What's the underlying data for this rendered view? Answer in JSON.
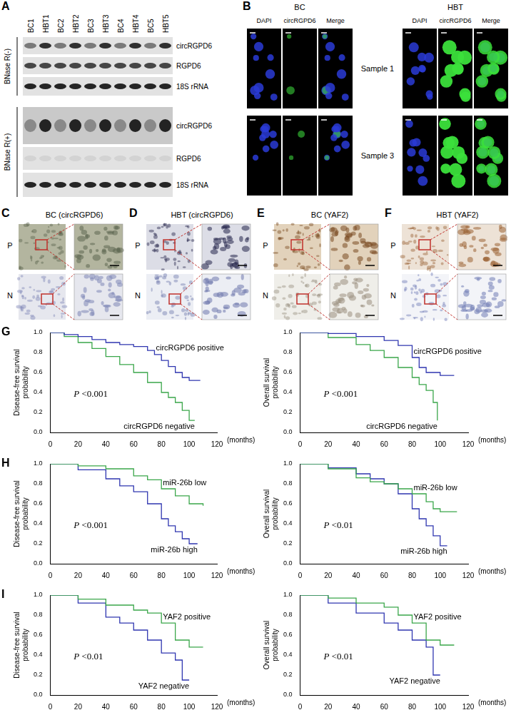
{
  "panels": [
    {
      "label": "A",
      "columns": [
        "BC1",
        "HBT1",
        "BC2",
        "HBT2",
        "BC3",
        "HBT3",
        "BC4",
        "HBT4",
        "BC5",
        "HBT5"
      ],
      "sections": [
        {
          "label": "BNase R(-)",
          "rows": [
            "circRGPD6",
            "RGPD6",
            "18S rRNA"
          ]
        },
        {
          "label": "BNase R(+)",
          "rows": [
            "circRGPD6",
            "RGPD6",
            "18S rRNA"
          ]
        }
      ]
    },
    {
      "label": "B",
      "groups": [
        "BC",
        "HBT"
      ],
      "channels": [
        "DAPI",
        "circRGPD6",
        "Merge"
      ],
      "samples": [
        "Sample 1",
        "Sample 3"
      ]
    },
    {
      "label": "C",
      "title": "BC (circRGPD6)",
      "rows": [
        "P",
        "N"
      ]
    },
    {
      "label": "D",
      "title": "HBT (circRGPD6)",
      "rows": [
        "P",
        "N"
      ]
    },
    {
      "label": "E",
      "title": "BC (YAF2)",
      "rows": [
        "P",
        "N"
      ]
    },
    {
      "label": "F",
      "title": "HBT (YAF2)",
      "rows": [
        "P",
        "N"
      ]
    },
    {
      "label": "G"
    },
    {
      "label": "H"
    },
    {
      "label": "I"
    }
  ],
  "chart_data": [
    {
      "type": "line",
      "y_label": "Disease-free survival probability",
      "x_label": "(months)",
      "annotation": "P <0.001",
      "xlim": [
        0,
        120
      ],
      "xticks": [
        0,
        20,
        40,
        60,
        80,
        100,
        120
      ],
      "ylim": [
        0,
        1
      ],
      "yticks": [
        {
          "value": 0,
          "label": "0.0"
        },
        0.2,
        0.4,
        0.6,
        0.8,
        {
          "value": 1,
          "label": "1.0"
        }
      ],
      "grid": false,
      "line_style": "steps",
      "series": [
        {
          "name": "circRGPD6 positive",
          "color": "#2f36b0",
          "x": [
            0,
            10,
            20,
            30,
            40,
            50,
            60,
            70,
            75,
            80,
            85,
            90,
            95,
            100,
            108
          ],
          "values": [
            1,
            0.98,
            0.96,
            0.93,
            0.9,
            0.88,
            0.86,
            0.82,
            0.78,
            0.72,
            0.66,
            0.6,
            0.55,
            0.52,
            0.52
          ]
        },
        {
          "name": "circRGPD6 negative",
          "color": "#3aa64a",
          "x": [
            0,
            10,
            20,
            30,
            40,
            50,
            60,
            70,
            80,
            85,
            90,
            95,
            100,
            104
          ],
          "values": [
            1,
            0.96,
            0.9,
            0.84,
            0.76,
            0.68,
            0.6,
            0.5,
            0.4,
            0.35,
            0.3,
            0.22,
            0.12,
            0.12
          ]
        }
      ]
    },
    {
      "type": "line",
      "y_label": "Overall survival probability",
      "x_label": "(months)",
      "annotation": "P <0.001",
      "xlim": [
        0,
        120
      ],
      "xticks": [
        0,
        20,
        40,
        60,
        80,
        100,
        120
      ],
      "ylim": [
        0,
        1
      ],
      "yticks": [
        {
          "value": 0,
          "label": "0.0"
        },
        0.2,
        0.4,
        0.6,
        0.8,
        {
          "value": 1,
          "label": "1.0"
        }
      ],
      "grid": false,
      "line_style": "steps",
      "series": [
        {
          "name": "circRGPD6 positive",
          "color": "#2f36b0",
          "x": [
            0,
            20,
            40,
            60,
            70,
            80,
            85,
            90,
            100,
            110
          ],
          "values": [
            1,
            0.99,
            0.96,
            0.92,
            0.87,
            0.75,
            0.65,
            0.6,
            0.57,
            0.57
          ]
        },
        {
          "name": "circRGPD6 negative",
          "color": "#3aa64a",
          "x": [
            0,
            20,
            40,
            50,
            60,
            70,
            80,
            85,
            90,
            95,
            98
          ],
          "values": [
            1,
            0.95,
            0.88,
            0.82,
            0.75,
            0.65,
            0.55,
            0.48,
            0.42,
            0.3,
            0.12
          ]
        }
      ]
    },
    {
      "type": "line",
      "y_label": "Disease-free survival probability",
      "x_label": "(months)",
      "annotation": "P <0.001",
      "xlim": [
        0,
        120
      ],
      "xticks": [
        0,
        20,
        40,
        60,
        80,
        100,
        120
      ],
      "ylim": [
        0,
        1
      ],
      "yticks": [
        {
          "value": 0,
          "label": "0.0"
        },
        0.2,
        0.4,
        0.6,
        0.8,
        {
          "value": 1,
          "label": "1.0"
        }
      ],
      "grid": false,
      "line_style": "steps",
      "series": [
        {
          "name": "miR-26b low",
          "color": "#3aa64a",
          "x": [
            0,
            20,
            40,
            60,
            70,
            80,
            90,
            100,
            110
          ],
          "values": [
            1,
            0.98,
            0.95,
            0.88,
            0.84,
            0.75,
            0.68,
            0.6,
            0.58
          ]
        },
        {
          "name": "miR-26b high",
          "color": "#2f36b0",
          "x": [
            0,
            20,
            40,
            50,
            60,
            70,
            80,
            85,
            90,
            95,
            100,
            106
          ],
          "values": [
            1,
            0.94,
            0.85,
            0.78,
            0.72,
            0.6,
            0.45,
            0.38,
            0.32,
            0.25,
            0.2,
            0.2
          ]
        }
      ]
    },
    {
      "type": "line",
      "y_label": "Overall survival probability",
      "x_label": "(months)",
      "annotation": "P <0.01",
      "xlim": [
        0,
        120
      ],
      "xticks": [
        0,
        20,
        40,
        60,
        80,
        100,
        120
      ],
      "ylim": [
        0,
        1
      ],
      "yticks": [
        {
          "value": 0,
          "label": "0.0"
        },
        0.2,
        0.4,
        0.6,
        0.8,
        {
          "value": 1,
          "label": "1.0"
        }
      ],
      "grid": false,
      "line_style": "steps",
      "series": [
        {
          "name": "miR-26b low",
          "color": "#3aa64a",
          "x": [
            0,
            20,
            40,
            50,
            60,
            70,
            80,
            90,
            95,
            100,
            112
          ],
          "values": [
            1,
            0.95,
            0.86,
            0.82,
            0.8,
            0.75,
            0.7,
            0.62,
            0.55,
            0.52,
            0.52
          ]
        },
        {
          "name": "miR-26b high",
          "color": "#2f36b0",
          "x": [
            0,
            20,
            40,
            50,
            60,
            70,
            80,
            85,
            90,
            95,
            100,
            105
          ],
          "values": [
            1,
            0.96,
            0.9,
            0.85,
            0.8,
            0.7,
            0.55,
            0.45,
            0.38,
            0.28,
            0.18,
            0.18
          ]
        }
      ]
    },
    {
      "type": "line",
      "y_label": "Disease-free survival probability",
      "x_label": "(months)",
      "annotation": "P <0.01",
      "xlim": [
        0,
        120
      ],
      "xticks": [
        0,
        20,
        40,
        60,
        80,
        100,
        120
      ],
      "ylim": [
        0,
        1
      ],
      "yticks": [
        {
          "value": 0,
          "label": "0.0"
        },
        0.2,
        0.4,
        0.6,
        0.8,
        {
          "value": 1,
          "label": "1.0"
        }
      ],
      "grid": false,
      "line_style": "steps",
      "series": [
        {
          "name": "YAF2 positive",
          "color": "#3aa64a",
          "x": [
            0,
            20,
            40,
            60,
            70,
            80,
            90,
            100,
            110
          ],
          "values": [
            1,
            0.96,
            0.9,
            0.85,
            0.82,
            0.72,
            0.55,
            0.48,
            0.48
          ]
        },
        {
          "name": "YAF2 negative",
          "color": "#2f36b0",
          "x": [
            0,
            20,
            40,
            50,
            60,
            70,
            80,
            90,
            95,
            100
          ],
          "values": [
            1,
            0.92,
            0.78,
            0.72,
            0.65,
            0.55,
            0.42,
            0.35,
            0.15,
            0.15
          ]
        }
      ]
    },
    {
      "type": "line",
      "y_label": "Overall survival probability",
      "x_label": "(months)",
      "annotation": "P <0.01",
      "xlim": [
        0,
        120
      ],
      "xticks": [
        0,
        20,
        40,
        60,
        80,
        100,
        120
      ],
      "ylim": [
        0,
        1
      ],
      "yticks": [
        {
          "value": 0,
          "label": "0.0"
        },
        0.2,
        0.4,
        0.6,
        0.8,
        {
          "value": 1,
          "label": "1.0"
        }
      ],
      "grid": false,
      "line_style": "steps",
      "series": [
        {
          "name": "YAF2 positive",
          "color": "#3aa64a",
          "x": [
            0,
            20,
            40,
            60,
            70,
            80,
            90,
            100,
            110
          ],
          "values": [
            1,
            0.97,
            0.92,
            0.88,
            0.8,
            0.72,
            0.55,
            0.5,
            0.5
          ]
        },
        {
          "name": "YAF2 negative",
          "color": "#2f36b0",
          "x": [
            0,
            20,
            40,
            60,
            70,
            80,
            90,
            95,
            100
          ],
          "values": [
            1,
            0.92,
            0.82,
            0.72,
            0.65,
            0.55,
            0.48,
            0.2,
            0.2
          ]
        }
      ]
    }
  ]
}
